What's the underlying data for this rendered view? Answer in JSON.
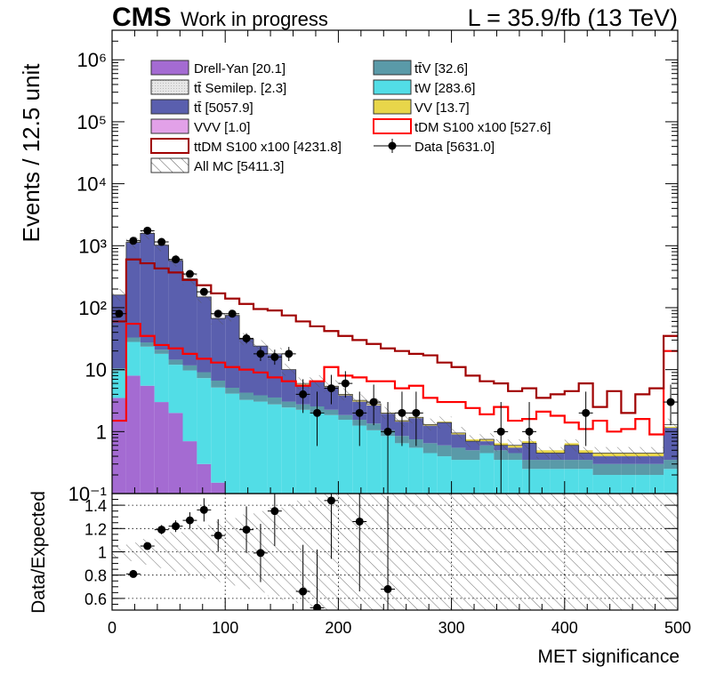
{
  "header": {
    "experiment": "CMS",
    "status": "Work in progress",
    "lumi": "L = 35.9/fb (13 TeV)"
  },
  "colors": {
    "drell_yan": "#a46bd2",
    "ttbar_semilep": "#e6e6e6",
    "ttbar": "#5a5fae",
    "vvv": "#e2a1e8",
    "ttv": "#5a9aa8",
    "tw": "#52dde6",
    "vv": "#e8d64a",
    "signal_tdm": "#ff0000",
    "signal_ttdm": "#a00000",
    "data": "#000000"
  },
  "chart_data": [
    {
      "type": "bar",
      "stacked": true,
      "yscale": "log",
      "xlabel": "",
      "ylabel": "Events / 12.5 unit",
      "xlim": [
        0,
        500
      ],
      "ylim": [
        0.1,
        3000000
      ],
      "bin_width": 12.5,
      "grid": false,
      "legend_position": "top",
      "y_tick_labels": [
        "10⁻¹",
        "1",
        "10",
        "10²",
        "10³",
        "10⁴",
        "10⁵",
        "10⁶"
      ],
      "legend": [
        {
          "label": "Drell-Yan [20.1]",
          "key": "drell_yan",
          "style": "fill"
        },
        {
          "label": "tt̄V [32.6]",
          "key": "ttv",
          "style": "fill"
        },
        {
          "label": "tt̄ Semilep. [2.3]",
          "key": "ttbar_semilep",
          "style": "fill"
        },
        {
          "label": "tW [283.6]",
          "key": "tw",
          "style": "fill"
        },
        {
          "label": "tt̄ [5057.9]",
          "key": "ttbar",
          "style": "fill"
        },
        {
          "label": "VV [13.7]",
          "key": "vv",
          "style": "fill"
        },
        {
          "label": "VVV [1.0]",
          "key": "vvv",
          "style": "fill"
        },
        {
          "label": "tDM S100 x100 [527.6]",
          "key": "signal_tdm",
          "style": "line"
        },
        {
          "label": "ttDM S100 x100 [4231.8]",
          "key": "signal_ttdm",
          "style": "line"
        },
        {
          "label": "Data [5631.0]",
          "key": "data",
          "style": "marker"
        },
        {
          "label": "All MC [5411.3]",
          "key": "allmc",
          "style": "hatch"
        }
      ],
      "stack": [
        {
          "name": "Drell-Yan",
          "key": "drell_yan",
          "values": [
            3.5,
            8,
            5.5,
            3,
            2,
            0.7,
            0.3,
            0.15,
            0.1,
            0.05,
            0.05,
            0.05,
            0.05,
            0.05,
            0.05,
            0.05,
            0.05,
            0.05,
            0.05,
            0.05,
            0.05,
            0.05,
            0.05,
            0.05,
            0.05,
            0.05,
            0.05,
            0.05,
            0.05,
            0.05,
            0.05,
            0.05,
            0.05,
            0.05,
            0.05,
            0.05,
            0.05,
            0.05,
            0.05,
            0.05
          ]
        },
        {
          "name": "tW",
          "key": "tw",
          "values": [
            6,
            20,
            18,
            15,
            10,
            9,
            7,
            5,
            4,
            3.2,
            3,
            2.7,
            2.4,
            2.2,
            2,
            1.8,
            1.5,
            1.2,
            1,
            0.8,
            0.6,
            0.5,
            0.4,
            0.35,
            0.3,
            0.3,
            0.4,
            0.3,
            0.3,
            0.2,
            0.2,
            0.2,
            0.2,
            0.2,
            0.15,
            0.15,
            0.15,
            0.15,
            0.15,
            0.2
          ]
        },
        {
          "name": "ttV",
          "key": "ttv",
          "values": [
            1,
            5,
            4,
            3,
            2.5,
            2,
            1.8,
            1.5,
            1,
            1,
            0.8,
            0.8,
            0.6,
            0.5,
            0.5,
            0.4,
            0.3,
            0.3,
            0.3,
            0.2,
            0.2,
            0.2,
            0.2,
            0.2,
            0.2,
            0.15,
            0.15,
            0.15,
            0.1,
            0.1,
            0.1,
            0.1,
            0.1,
            0.1,
            0.1,
            0.1,
            0.1,
            0.1,
            0.1,
            0.1
          ]
        },
        {
          "name": "tt",
          "key": "ttbar",
          "values": [
            150,
            1100,
            1550,
            1000,
            560,
            280,
            140,
            60,
            70,
            27,
            20,
            14,
            7,
            3,
            3.8,
            3,
            2,
            1.5,
            1.3,
            0.9,
            0.6,
            0.9,
            0.6,
            0.8,
            0.35,
            0.2,
            0.1,
            0.1,
            0.1,
            0.3,
            0.1,
            0.1,
            0.25,
            0.1,
            0.1,
            0.1,
            0.1,
            0.1,
            0.1,
            0.8
          ]
        },
        {
          "name": "VV",
          "key": "vv",
          "values": [
            0.3,
            0.5,
            0.4,
            0.3,
            0.3,
            0.2,
            0.2,
            0.2,
            0.1,
            0.1,
            0.1,
            0.1,
            0.1,
            0.1,
            0.1,
            0.1,
            0.1,
            0.1,
            0.05,
            0.05,
            0.05,
            0.05,
            0.05,
            0.05,
            0.05,
            0.05,
            0.05,
            0.05,
            0.05,
            0.05,
            0.05,
            0.05,
            0.05,
            0.05,
            0.05,
            0.05,
            0.05,
            0.05,
            0.05,
            0.05
          ]
        }
      ],
      "signals": [
        {
          "name": "tDM S100 x100",
          "key": "signal_tdm",
          "values": [
            1.5,
            55,
            35,
            25,
            22,
            18,
            15,
            13,
            11,
            10,
            9,
            7.5,
            6.5,
            5.5,
            6.5,
            11,
            8,
            7.5,
            6.5,
            6.5,
            5,
            5.5,
            3.5,
            3,
            3,
            2.4,
            1.9,
            2.5,
            1.5,
            1.6,
            2.1,
            1.8,
            1.4,
            1.1,
            1.5,
            1,
            1.1,
            1.6,
            0.9,
            20
          ]
        },
        {
          "name": "ttDM S100 x100",
          "key": "signal_ttdm",
          "values": [
            60,
            600,
            520,
            430,
            370,
            280,
            230,
            170,
            140,
            115,
            95,
            90,
            75,
            60,
            50,
            42,
            35,
            30,
            26,
            22,
            20,
            18,
            17,
            13,
            11,
            8,
            6.5,
            6,
            4.5,
            5,
            3.5,
            4,
            4.5,
            6,
            2.5,
            4.5,
            2,
            4,
            5,
            35
          ]
        }
      ],
      "data_points": {
        "name": "Data",
        "x": [
          6.25,
          18.75,
          31.25,
          43.75,
          56.25,
          68.75,
          81.25,
          93.75,
          106.25,
          118.75,
          131.25,
          143.75,
          156.25,
          168.75,
          181.25,
          193.75,
          206.25,
          218.75,
          231.25,
          243.75,
          256.25,
          268.75,
          343.75,
          368.75,
          418.75,
          493.75
        ],
        "y": [
          80,
          1200,
          1750,
          1150,
          600,
          350,
          180,
          80,
          80,
          32,
          18,
          16,
          18,
          4,
          2,
          5,
          6,
          2,
          3,
          1,
          2,
          2,
          1,
          1,
          2,
          3
        ]
      },
      "all_mc_total": [
        160,
        1130,
        1580,
        1020,
        575,
        292,
        149,
        67,
        75,
        31,
        24,
        18,
        10,
        6,
        6.5,
        5.4,
        4,
        3.2,
        2.8,
        2,
        1.5,
        1.7,
        1.3,
        1.4,
        0.95,
        0.7,
        0.75,
        0.6,
        0.6,
        0.65,
        0.45,
        0.45,
        0.6,
        0.45,
        0.45,
        0.45,
        0.45,
        0.45,
        0.45,
        1.3
      ]
    },
    {
      "type": "scatter",
      "xlabel": "MET significance",
      "ylabel": "Data/Expected",
      "xlim": [
        0,
        500
      ],
      "ylim": [
        0.5,
        1.5
      ],
      "grid": true,
      "x_ticks": [
        0,
        100,
        200,
        300,
        400,
        500
      ],
      "y_ticks": [
        0.6,
        0.8,
        1,
        1.2,
        1.4
      ],
      "y_tick_labels": [
        "0.6",
        "0.8",
        "1",
        "1.2",
        "1.4"
      ],
      "x_tick_labels": [
        "0",
        "100",
        "200",
        "300",
        "400",
        "500"
      ],
      "points": {
        "x": [
          18.75,
          31.25,
          43.75,
          56.25,
          68.75,
          81.25,
          93.75,
          118.75,
          131.25,
          143.75,
          168.75,
          181.25,
          193.75,
          218.75,
          243.75
        ],
        "y": [
          0.81,
          1.05,
          1.19,
          1.22,
          1.27,
          1.36,
          1.14,
          1.19,
          0.99,
          1.35,
          0.66,
          0.52,
          1.44,
          1.26,
          0.68
        ],
        "yerr": [
          0.03,
          0.03,
          0.04,
          0.05,
          0.07,
          0.1,
          0.14,
          0.2,
          0.25,
          0.3,
          0.4,
          0.5,
          0.5,
          0.6,
          0.8
        ]
      }
    }
  ]
}
